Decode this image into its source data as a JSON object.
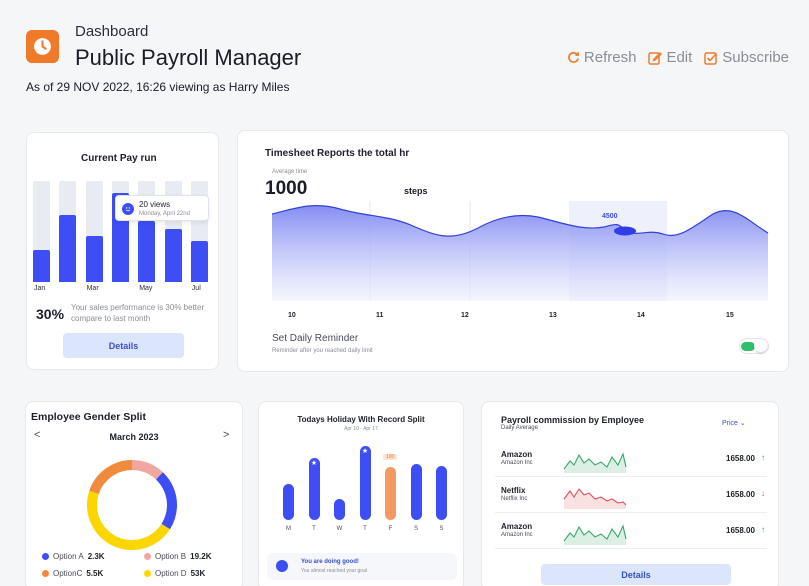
{
  "header": {
    "breadcrumb": "Dashboard",
    "title": "Public Payroll Manager",
    "as_of": "As of 29 NOV 2022,  16:26 viewing as Harry Miles",
    "actions": {
      "refresh": "Refresh",
      "edit": "Edit",
      "subscribe": "Subscribe"
    },
    "accent": "#f07a2a",
    "logo_icon": "clock-icon"
  },
  "payrun": {
    "title": "Current Pay run",
    "chart_data": {
      "type": "bar",
      "categories": [
        "Jan",
        "",
        "Mar",
        "",
        "May",
        "",
        "Jul"
      ],
      "values": [
        32,
        66,
        46,
        88,
        60,
        52,
        41
      ],
      "ylim": [
        0,
        100
      ],
      "color": "#3d4ef4"
    },
    "tooltip": {
      "views": "20 views",
      "date": "Monday, April 22nd"
    },
    "percent": "30%",
    "description": "Your sales performance is 30% better compare to last month",
    "details_label": "Details"
  },
  "timesheet": {
    "title": "Timesheet Reports the total hr",
    "subtitle": "Average time",
    "value": "1000",
    "unit": "steps",
    "chart_data": {
      "type": "area",
      "x_ticks": [
        "10",
        "11",
        "12",
        "13",
        "14",
        "15"
      ],
      "highlight_label": "4500",
      "color": "#3d4ef4"
    },
    "reminder_title": "Set Daily Reminder",
    "reminder_sub": "Reminder after you reached daily limit",
    "reminder_on": true
  },
  "gender": {
    "title": "Employee Gender Split",
    "month": "March 2023",
    "prev": "<",
    "next": ">",
    "chart_data": {
      "type": "pie",
      "slices": [
        {
          "name": "Option A",
          "value": 2.3,
          "display": "2.3K",
          "color": "#3d4ef4"
        },
        {
          "name": "Option B",
          "value": 19.2,
          "display": "19.2K",
          "color": "#f1a7a0"
        },
        {
          "name": "OptionC",
          "value": 5.5,
          "display": "5.5K",
          "color": "#f08a3c"
        },
        {
          "name": "Option D",
          "value": 53,
          "display": "53K",
          "color": "#fcd600"
        }
      ]
    }
  },
  "holiday": {
    "title": "Todays Holiday With Record Split",
    "range": "Apr 10 - Apr 17",
    "chart_data": {
      "type": "bar",
      "categories": [
        "M",
        "T",
        "W",
        "T",
        "F",
        "S",
        "S"
      ],
      "values": [
        45,
        78,
        26,
        92,
        66,
        70,
        68
      ],
      "highlight_value": "100",
      "colors": [
        "#3d4ef4",
        "#3d4ef4",
        "#3d4ef4",
        "#3d4ef4",
        "#f49a60",
        "#3d4ef4",
        "#3d4ef4"
      ]
    },
    "message_title": "You are doing good!",
    "message_sub": "You almost reached your goal"
  },
  "commission": {
    "title": "Payroll commission by Employee",
    "subtitle": "Daily Average",
    "filter": "Price",
    "rows": [
      {
        "name": "Amazon",
        "company": "Amazon Inc",
        "value": "1658.00",
        "trend": "up",
        "arrow": "↑",
        "color": "#3aa66a"
      },
      {
        "name": "Netflix",
        "company": "Netflix Inc",
        "value": "1658.00",
        "trend": "down",
        "arrow": "↓",
        "color": "#e0525a"
      },
      {
        "name": "Amazon",
        "company": "Amazon Inc",
        "value": "1658.00",
        "trend": "up",
        "arrow": "↑",
        "color": "#3aa66a"
      }
    ],
    "details_label": "Details"
  }
}
